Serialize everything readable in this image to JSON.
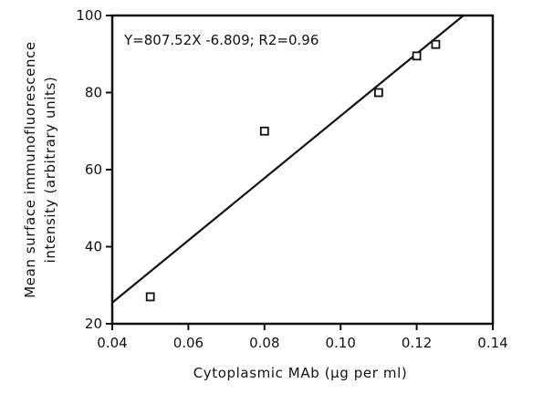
{
  "chart_data": {
    "type": "scatter",
    "title": "",
    "xlabel": "Cytoplasmic MAb (µg per ml)",
    "ylabel_line1": "Mean surface immunofluorescence",
    "ylabel_line2": "intensity (arbitrary units)",
    "xlim": [
      0.04,
      0.14
    ],
    "ylim": [
      20,
      100
    ],
    "xticks": [
      0.04,
      0.06,
      0.08,
      0.1,
      0.12,
      0.14
    ],
    "xtick_labels": [
      "0.04",
      "0.06",
      "0.08",
      "0.10",
      "0.12",
      "0.14"
    ],
    "yticks": [
      20,
      40,
      60,
      80,
      100
    ],
    "ytick_labels": [
      "20",
      "40",
      "60",
      "80",
      "100"
    ],
    "grid": false,
    "marker": "open-square",
    "points": [
      {
        "x": 0.05,
        "y": 27
      },
      {
        "x": 0.08,
        "y": 70
      },
      {
        "x": 0.11,
        "y": 80
      },
      {
        "x": 0.12,
        "y": 89.5
      },
      {
        "x": 0.125,
        "y": 92.5
      }
    ],
    "fit_line": {
      "slope": 807.52,
      "intercept": -6.809,
      "x_range": [
        0.04,
        0.14
      ]
    },
    "annotation": "Y=807.52X -6.809; R2=0.96"
  }
}
